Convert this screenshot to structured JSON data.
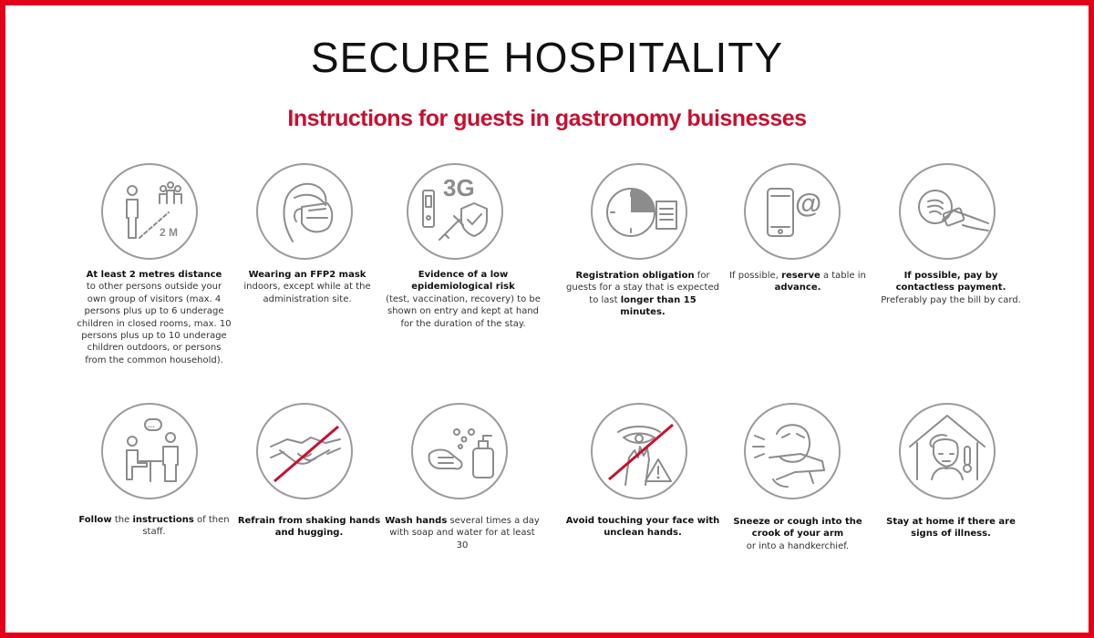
{
  "title": "SECURE HOSPITALITY",
  "subtitle": "Instructions for guests in gastronomy buisnesses",
  "colors": {
    "brand_red": "#e2001a",
    "icon_gray": "#8c8c8c"
  },
  "items": [
    {
      "icon": "distance-icon",
      "icon_label": "2 M",
      "bold": "At least 2 metres distance",
      "text": "to other persons outside your own group of visitors (max. 4 persons plus up to 6 underage children in closed rooms, max. 10 persons plus up to 10 underage children outdoors, or persons from the common household)."
    },
    {
      "icon": "ffp2-mask-icon",
      "bold": "Wearing an FFP2 mask",
      "text": "indoors, except while at the administration site."
    },
    {
      "icon": "3g-test-vaccination-icon",
      "icon_label": "3G",
      "bold": "Evidence of a low epidemiological risk",
      "text": "(test, vaccination, recovery) to be shown on entry and kept at hand for the duration of the stay."
    },
    {
      "icon": "registration-clock-icon",
      "bold": "Registration obligation",
      "text": "for guests for a stay that is expected to last",
      "bold2": "longer than 15 minutes."
    },
    {
      "icon": "phone-email-icon",
      "icon_label": "@",
      "pre": "If possible,",
      "bold": "reserve",
      "text": "a table in",
      "bold2": "advance."
    },
    {
      "icon": "contactless-payment-icon",
      "bold": "If possible, pay by contactless payment.",
      "text": "Preferably pay the bill by card."
    },
    {
      "icon": "staff-instructions-icon",
      "icon_label": "...",
      "bold": "Follow",
      "text": "the",
      "bold2": "instructions",
      "text2": "of then staff."
    },
    {
      "icon": "no-handshake-icon",
      "bold": "Refrain from shaking hands and hugging."
    },
    {
      "icon": "wash-hands-icon",
      "bold": "Wash hands",
      "text": "several times a day with soap and water for at least 30"
    },
    {
      "icon": "no-face-touching-icon",
      "bold": "Avoid touching your face with unclean hands."
    },
    {
      "icon": "sneeze-elbow-icon",
      "bold": "Sneeze or cough into the crook of your arm",
      "text": "or into a handkerchief."
    },
    {
      "icon": "stay-home-icon",
      "bold": "Stay at home if there are signs of illness."
    }
  ]
}
